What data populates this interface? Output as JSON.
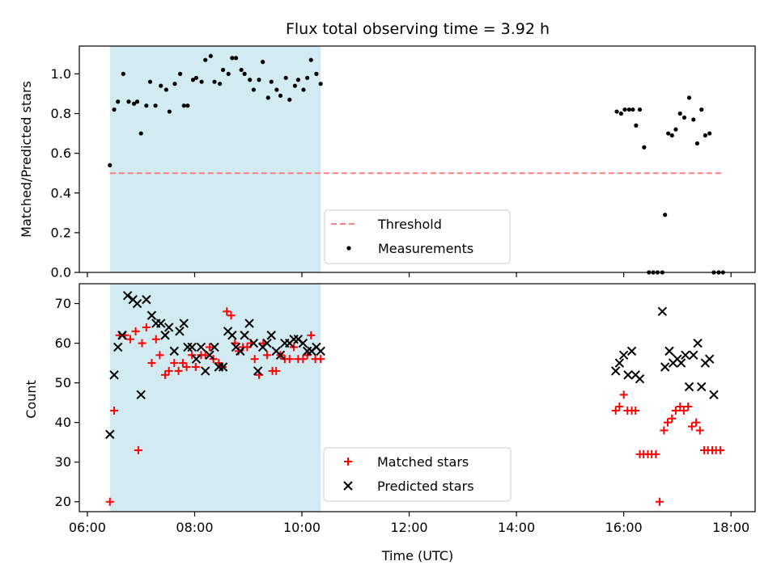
{
  "title": "Flux total observing time = 3.92 h",
  "x_axis": {
    "label": "Time (UTC)",
    "range_hours": [
      5.85,
      18.45
    ],
    "ticks": [
      {
        "t": 6,
        "label": "06:00"
      },
      {
        "t": 8,
        "label": "08:00"
      },
      {
        "t": 10,
        "label": "10:00"
      },
      {
        "t": 12,
        "label": "12:00"
      },
      {
        "t": 14,
        "label": "14:00"
      },
      {
        "t": 16,
        "label": "16:00"
      },
      {
        "t": 18,
        "label": "18:00"
      }
    ]
  },
  "highlight_span": {
    "start": 6.42,
    "end": 10.35,
    "color": "#add8e6"
  },
  "colors": {
    "threshold": "#ff7f7f",
    "measurements": "#000000",
    "matched": "#ff0000",
    "predicted": "#000000",
    "highlight": "#add8e6"
  },
  "chart_data": [
    {
      "type": "scatter",
      "ylabel": "Matched/Predicted stars",
      "ylim": [
        0,
        1.14
      ],
      "yticks": [
        "0.0",
        "0.2",
        "0.4",
        "0.6",
        "0.8",
        "1.0"
      ],
      "threshold": {
        "name": "Threshold",
        "y": 0.5,
        "x_range": [
          6.42,
          17.85
        ]
      },
      "legend": [
        "Threshold",
        "Measurements"
      ],
      "legend_position": "lower-center",
      "series": [
        {
          "name": "Measurements",
          "x": [
            6.42,
            6.5,
            6.57,
            6.67,
            6.77,
            6.87,
            6.93,
            7.0,
            7.1,
            7.17,
            7.27,
            7.37,
            7.47,
            7.53,
            7.63,
            7.73,
            7.8,
            7.87,
            7.97,
            8.03,
            8.13,
            8.2,
            8.3,
            8.37,
            8.47,
            8.53,
            8.63,
            8.7,
            8.77,
            8.87,
            8.93,
            9.03,
            9.1,
            9.2,
            9.27,
            9.37,
            9.43,
            9.53,
            9.6,
            9.7,
            9.77,
            9.87,
            9.93,
            10.03,
            10.1,
            10.17,
            10.27,
            10.35,
            15.87,
            15.95,
            16.02,
            16.1,
            16.17,
            16.23,
            16.3,
            16.38,
            16.47,
            16.55,
            16.63,
            16.72,
            16.77,
            16.83,
            16.9,
            16.97,
            17.05,
            17.13,
            17.22,
            17.3,
            17.37,
            17.45,
            17.52,
            17.6,
            17.68,
            17.77,
            17.85
          ],
          "y": [
            0.54,
            0.82,
            0.86,
            1.0,
            0.86,
            0.85,
            0.86,
            0.7,
            0.84,
            0.96,
            0.84,
            0.94,
            0.92,
            0.81,
            0.95,
            1.0,
            0.84,
            0.84,
            0.97,
            0.98,
            0.96,
            1.07,
            1.09,
            0.96,
            0.95,
            1.02,
            1.0,
            1.08,
            1.08,
            1.02,
            1.0,
            0.97,
            0.92,
            0.97,
            1.06,
            0.88,
            0.96,
            0.92,
            0.89,
            0.98,
            0.87,
            0.94,
            0.97,
            0.92,
            0.98,
            1.07,
            1.0,
            0.95,
            0.81,
            0.8,
            0.82,
            0.82,
            0.82,
            0.74,
            0.82,
            0.63,
            0.0,
            0.0,
            0.0,
            0.0,
            0.29,
            0.7,
            0.69,
            0.72,
            0.8,
            0.78,
            0.88,
            0.77,
            0.65,
            0.82,
            0.69,
            0.7,
            0.0,
            0.0,
            0.0
          ]
        }
      ]
    },
    {
      "type": "scatter",
      "xlabel": "Time (UTC)",
      "ylabel": "Count",
      "ylim": [
        17.5,
        75
      ],
      "yticks": [
        "20",
        "30",
        "40",
        "50",
        "60",
        "70"
      ],
      "legend": [
        "Matched stars",
        "Predicted stars"
      ],
      "legend_position": "lower-center",
      "series": [
        {
          "name": "Matched stars",
          "x": [
            6.42,
            6.5,
            6.6,
            6.7,
            6.8,
            6.9,
            6.95,
            7.02,
            7.1,
            7.2,
            7.28,
            7.35,
            7.45,
            7.52,
            7.62,
            7.7,
            7.78,
            7.85,
            7.95,
            8.02,
            8.12,
            8.2,
            8.28,
            8.35,
            8.45,
            8.52,
            8.6,
            8.68,
            8.75,
            8.82,
            8.9,
            8.98,
            9.05,
            9.12,
            9.2,
            9.28,
            9.35,
            9.45,
            9.52,
            9.6,
            9.68,
            9.77,
            9.85,
            9.93,
            10.02,
            10.1,
            10.17,
            10.25,
            10.35,
            15.85,
            15.92,
            16.0,
            16.07,
            16.15,
            16.22,
            16.3,
            16.37,
            16.45,
            16.52,
            16.6,
            16.67,
            16.75,
            16.82,
            16.9,
            16.97,
            17.05,
            17.12,
            17.2,
            17.27,
            17.35,
            17.42,
            17.5,
            17.57,
            17.65,
            17.72,
            17.8
          ],
          "y": [
            20,
            43,
            62,
            62,
            61,
            63,
            33,
            60,
            64,
            55,
            61,
            57,
            52,
            53,
            55,
            53,
            55,
            54,
            57,
            54,
            57,
            57,
            59,
            56,
            55,
            54,
            68,
            67,
            60,
            58,
            59,
            59,
            60,
            56,
            52,
            60,
            57,
            53,
            53,
            57,
            56,
            56,
            59,
            56,
            56,
            57,
            62,
            56,
            56,
            43,
            44,
            47,
            43,
            43,
            43,
            32,
            32,
            32,
            32,
            32,
            20,
            38,
            40,
            41,
            43,
            44,
            43,
            44,
            39,
            40,
            38,
            33,
            33,
            33,
            33,
            33
          ]
        },
        {
          "name": "Predicted stars",
          "x": [
            6.42,
            6.5,
            6.57,
            6.65,
            6.75,
            6.85,
            6.93,
            7.0,
            7.1,
            7.2,
            7.28,
            7.37,
            7.45,
            7.52,
            7.62,
            7.72,
            7.8,
            7.87,
            7.95,
            8.03,
            8.12,
            8.2,
            8.28,
            8.37,
            8.45,
            8.53,
            8.62,
            8.7,
            8.77,
            8.85,
            8.93,
            9.02,
            9.1,
            9.18,
            9.27,
            9.35,
            9.43,
            9.52,
            9.6,
            9.68,
            9.77,
            9.85,
            9.93,
            10.02,
            10.1,
            10.18,
            10.27,
            10.35,
            15.85,
            15.92,
            16.0,
            16.08,
            16.15,
            16.22,
            16.3,
            16.72,
            16.77,
            16.85,
            16.92,
            17.0,
            17.07,
            17.15,
            17.22,
            17.3,
            17.38,
            17.45,
            17.52,
            17.6,
            17.68
          ],
          "y": [
            37,
            52,
            59,
            62,
            72,
            71,
            70,
            47,
            71,
            67,
            65,
            65,
            62,
            64,
            58,
            63,
            65,
            59,
            59,
            56,
            59,
            53,
            57,
            59,
            54,
            54,
            63,
            62,
            59,
            58,
            62,
            65,
            60,
            53,
            59,
            60,
            62,
            58,
            57,
            60,
            60,
            61,
            61,
            60,
            58,
            58,
            59,
            58,
            53,
            55,
            57,
            52,
            58,
            52,
            51,
            68,
            54,
            58,
            55,
            56,
            55,
            57,
            49,
            57,
            60,
            49,
            55,
            56,
            47
          ]
        }
      ]
    }
  ]
}
